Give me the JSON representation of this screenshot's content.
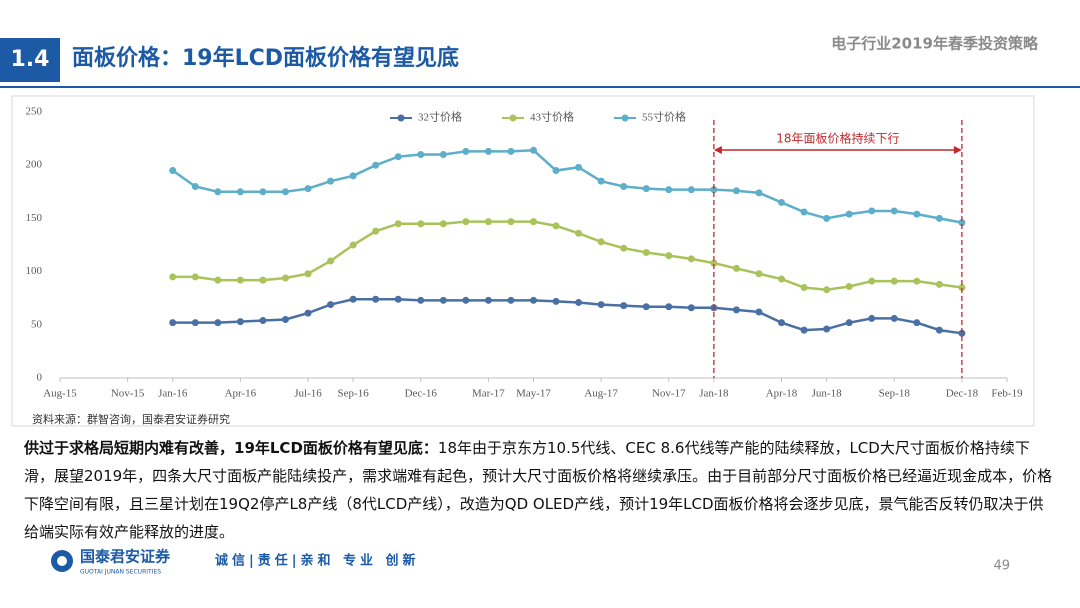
{
  "header": {
    "section": "1.4",
    "title": "面板价格：19年LCD面板价格有望见底",
    "report": "电子行业2019年春季投资策略"
  },
  "chart_data": {
    "type": "line",
    "x": [
      "Jan-16",
      "Feb-16",
      "Mar-16",
      "Apr-16",
      "May-16",
      "Jun-16",
      "Jul-16",
      "Aug-16",
      "Sep-16",
      "Oct-16",
      "Nov-16",
      "Dec-16",
      "Jan-17",
      "Feb-17",
      "Mar-17",
      "Apr-17",
      "May-17",
      "Jun-17",
      "Jul-17",
      "Aug-17",
      "Sep-17",
      "Oct-17",
      "Nov-17",
      "Dec-17",
      "Jan-18",
      "Feb-18",
      "Mar-18",
      "Apr-18",
      "May-18",
      "Jun-18",
      "Jul-18",
      "Aug-18",
      "Sep-18",
      "Oct-18",
      "Nov-18",
      "Dec-18"
    ],
    "xlim": [
      "Aug-15",
      "Feb-19"
    ],
    "xticks": [
      "Aug-15",
      "Nov-15",
      "Jan-16",
      "Apr-16",
      "Jul-16",
      "Sep-16",
      "Dec-16",
      "Mar-17",
      "May-17",
      "Aug-17",
      "Nov-17",
      "Jan-18",
      "Apr-18",
      "Jun-18",
      "Sep-18",
      "Dec-18",
      "Feb-19"
    ],
    "ylim": [
      0,
      250
    ],
    "yticks": [
      0,
      50,
      100,
      150,
      200,
      250
    ],
    "series": [
      {
        "name": "32寸价格",
        "color": "#4a6fa5",
        "values": [
          52,
          52,
          52,
          53,
          54,
          55,
          61,
          69,
          74,
          74,
          74,
          73,
          73,
          73,
          73,
          73,
          73,
          72,
          71,
          69,
          68,
          67,
          67,
          66,
          66,
          64,
          62,
          52,
          45,
          46,
          52,
          56,
          56,
          52,
          45,
          42
        ]
      },
      {
        "name": "43寸价格",
        "color": "#a9c25a",
        "values": [
          95,
          95,
          92,
          92,
          92,
          94,
          98,
          110,
          125,
          138,
          145,
          145,
          145,
          147,
          147,
          147,
          147,
          143,
          136,
          128,
          122,
          118,
          115,
          112,
          108,
          103,
          98,
          93,
          85,
          83,
          86,
          91,
          91,
          91,
          88,
          85
        ]
      },
      {
        "name": "55寸价格",
        "color": "#5caec9",
        "values": [
          195,
          180,
          175,
          175,
          175,
          175,
          178,
          185,
          190,
          200,
          208,
          210,
          210,
          213,
          213,
          213,
          214,
          195,
          198,
          185,
          180,
          178,
          177,
          177,
          177,
          176,
          174,
          165,
          156,
          150,
          154,
          157,
          157,
          154,
          150,
          146
        ]
      }
    ],
    "annotation": {
      "text": "18年面板价格持续下行",
      "from": "Jan-18",
      "to": "Dec-18",
      "color": "#c0282d"
    },
    "source": "资料来源：群智咨询，国泰君安证券研究"
  },
  "text": {
    "lead": "供过于求格局短期内难有改善，19年LCD面板价格有望见底：",
    "body": "18年由于京东方10.5代线、CEC 8.6代线等产能的陆续释放，LCD大尺寸面板价格持续下滑，展望2019年，四条大尺寸面板产能陆续投产，需求端难有起色，预计大尺寸面板价格将继续承压。由于目前部分尺寸面板价格已经逼近现金成本，价格下降空间有限，且三星计划在19Q2停产L8产线（8代LCD产线），改造为QD OLED产线，预计19年LCD面板价格将会逐步见底，景气能否反转仍取决于供给端实际有效产能释放的进度。"
  },
  "footer": {
    "company": "国泰君安证券",
    "company_en": "GUOTAI JUNAN SECURITIES",
    "slogan": "诚信|责任|亲和 专业 创新",
    "page": "49"
  }
}
